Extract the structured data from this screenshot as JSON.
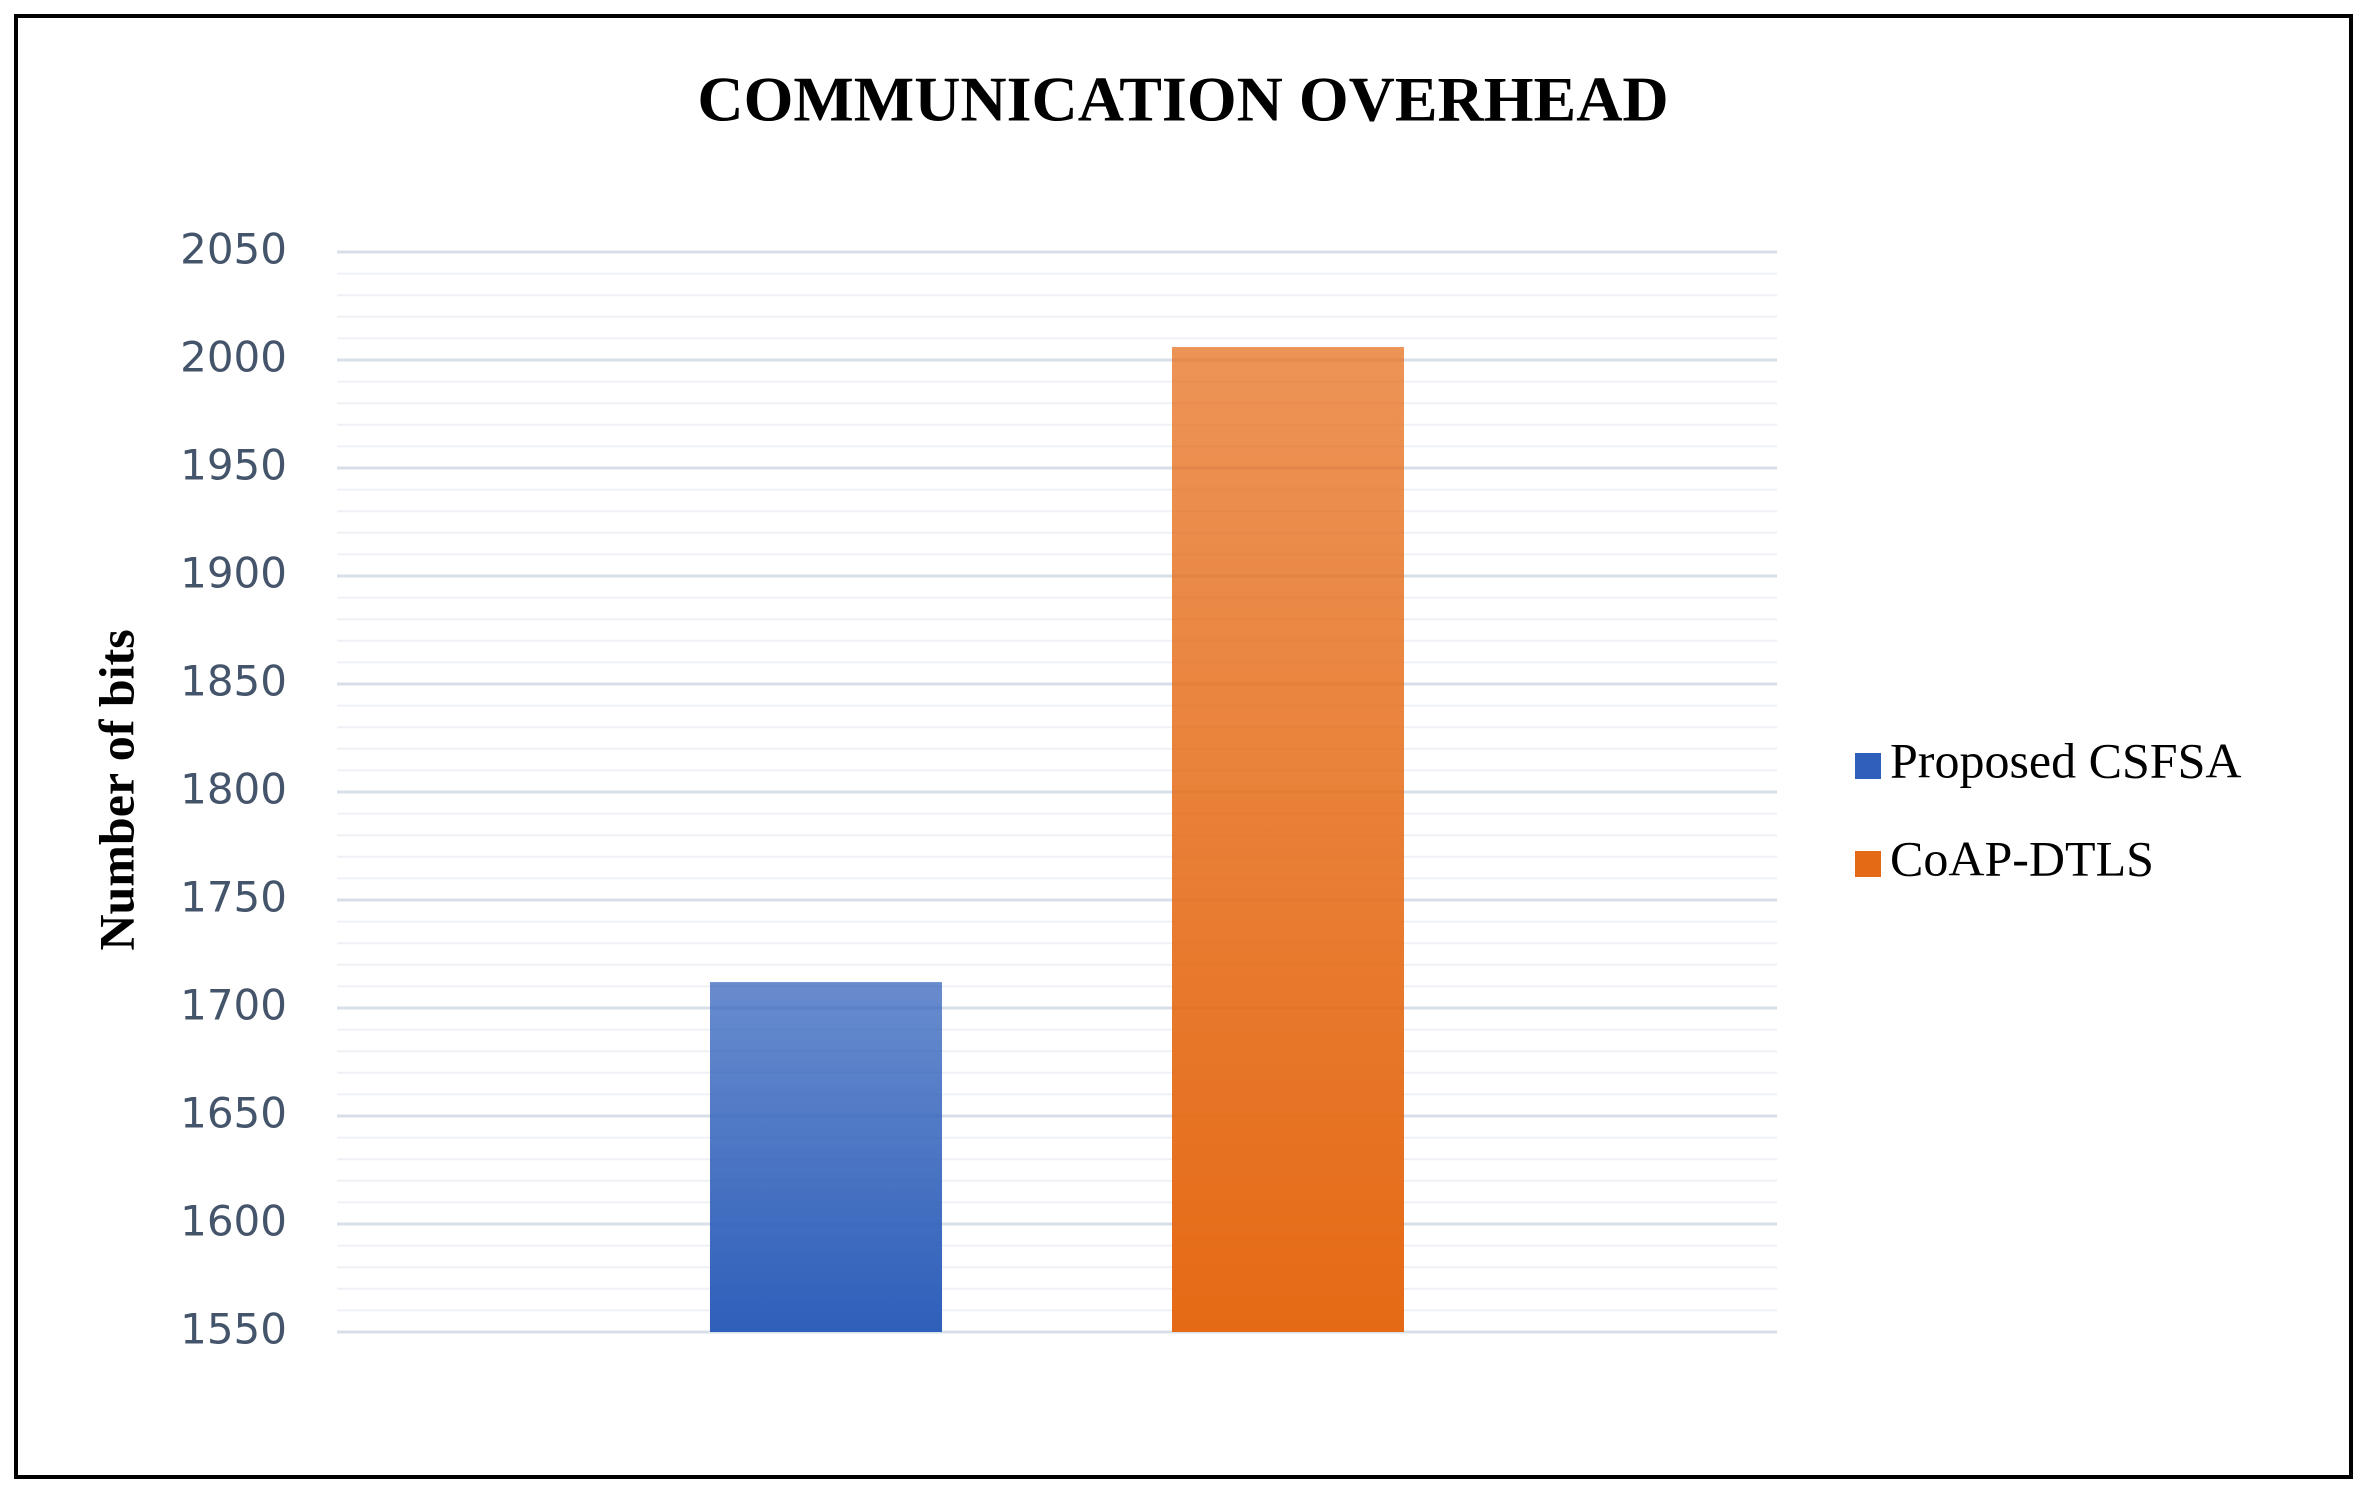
{
  "chart_data": {
    "type": "bar",
    "title": "COMMUNICATION OVERHEAD",
    "y_label": "Number of bits",
    "categories": [
      null
    ],
    "series": [
      {
        "name": "Proposed CSFSA",
        "color": "#2e5fba",
        "values": [
          1712
        ]
      },
      {
        "name": "CoAP-DTLS",
        "color": "#e56a15",
        "values": [
          2006
        ]
      }
    ],
    "ylim": [
      1550,
      2050
    ],
    "yticks": [
      1550,
      1600,
      1650,
      1700,
      1750,
      1800,
      1850,
      1900,
      1950,
      2000,
      2050
    ],
    "grid": true,
    "legend": "right"
  }
}
